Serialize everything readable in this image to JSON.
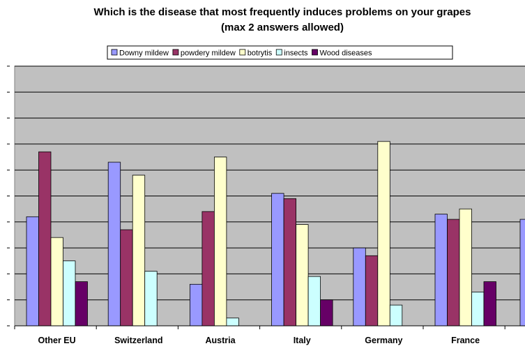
{
  "chart_data": {
    "type": "bar",
    "title": "Which is the disease that most frequently induces problems on your grapes",
    "subtitle": "(max 2 answers allowed)",
    "categories": [
      "Other EU",
      "Switzerland",
      "Austria",
      "Italy",
      "Germany",
      "France"
    ],
    "series": [
      {
        "name": "Downy mildew",
        "color": "#9999ff",
        "values": [
          21,
          31.5,
          8,
          25.5,
          15,
          21.5
        ]
      },
      {
        "name": "powdery mildew",
        "color": "#993366",
        "values": [
          33.5,
          18.5,
          22,
          24.5,
          13.5,
          20.5
        ]
      },
      {
        "name": "botrytis",
        "color": "#ffffcc",
        "values": [
          17,
          29,
          32.5,
          19.5,
          35.5,
          22.5
        ]
      },
      {
        "name": "insects",
        "color": "#ccffff",
        "values": [
          12.5,
          10.5,
          1.5,
          9.5,
          4,
          6.5
        ]
      },
      {
        "name": "Wood diseases",
        "color": "#660066",
        "values": [
          8.5,
          0,
          0,
          5,
          0,
          8.5
        ]
      }
    ],
    "ylim": [
      0,
      50
    ],
    "y_ticks": [
      0,
      5,
      10,
      15,
      20,
      25,
      30,
      35,
      40,
      45,
      50
    ],
    "grid": true,
    "legend": "top",
    "plot_background": "#c0c0c0"
  }
}
